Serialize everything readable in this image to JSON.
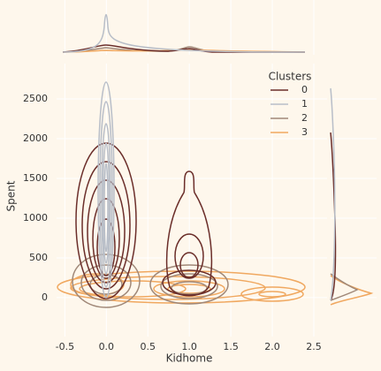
{
  "chart_data": {
    "type": "kde-joint",
    "x_label": "Kidhome",
    "y_label": "Spent",
    "legend_title": "Clusters",
    "legend": "upper right",
    "grid": true,
    "xlim": [
      -0.6,
      2.66
    ],
    "xticks": [
      -0.5,
      {
        "value": 0,
        "label": "0.0"
      },
      0.5,
      {
        "value": 1,
        "label": "1.0"
      },
      1.5,
      {
        "value": 2,
        "label": "2.0"
      },
      2.5
    ],
    "ylim": [
      -490,
      2945
    ],
    "yticks": [
      0,
      500,
      1000,
      1500,
      2000,
      2500
    ],
    "series": [
      {
        "name": "0",
        "color": "#6b2e2a"
      },
      {
        "name": "1",
        "color": "#b8bec8"
      },
      {
        "name": "2",
        "color": "#a08878"
      },
      {
        "name": "3",
        "color": "#f0a860"
      }
    ]
  }
}
